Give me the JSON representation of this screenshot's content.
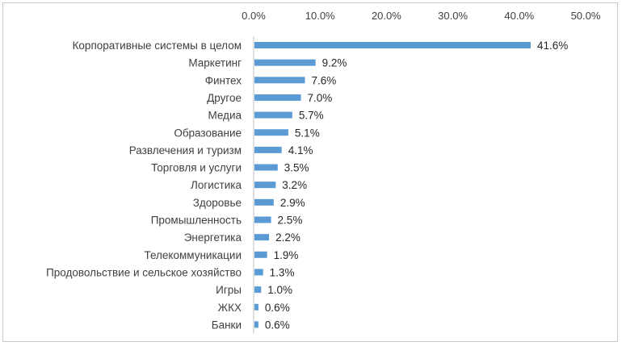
{
  "chart_data": {
    "type": "bar",
    "orientation": "horizontal",
    "title": "",
    "xlabel": "",
    "ylabel": "",
    "axis_position": "top",
    "grid": false,
    "legend": "none",
    "xlim": [
      0,
      50
    ],
    "x_ticks": [
      0,
      10,
      20,
      30,
      40,
      50
    ],
    "x_tick_labels": [
      "0.0%",
      "10.0%",
      "20.0%",
      "30.0%",
      "40.0%",
      "50.0%"
    ],
    "bar_color": "#5b9bd5",
    "categories": [
      "Корпоративные системы в целом",
      "Маркетинг",
      "Финтех",
      "Другое",
      "Медиа",
      "Образование",
      "Развлечения и туризм",
      "Торговля и услуги",
      "Логистика",
      "Здоровье",
      "Промышленность",
      "Энергетика",
      "Телекоммуникации",
      "Продовольствие и сельское хозяйство",
      "Игры",
      "ЖКХ",
      "Банки"
    ],
    "values": [
      41.6,
      9.2,
      7.6,
      7.0,
      5.7,
      5.1,
      4.1,
      3.5,
      3.2,
      2.9,
      2.5,
      2.2,
      1.9,
      1.3,
      1.0,
      0.6,
      0.6
    ],
    "value_labels": [
      "41.6%",
      "9.2%",
      "7.6%",
      "7.0%",
      "5.7%",
      "5.1%",
      "4.1%",
      "3.5%",
      "3.2%",
      "2.9%",
      "2.5%",
      "2.2%",
      "1.9%",
      "1.3%",
      "1.0%",
      "0.6%",
      "0.6%"
    ]
  }
}
